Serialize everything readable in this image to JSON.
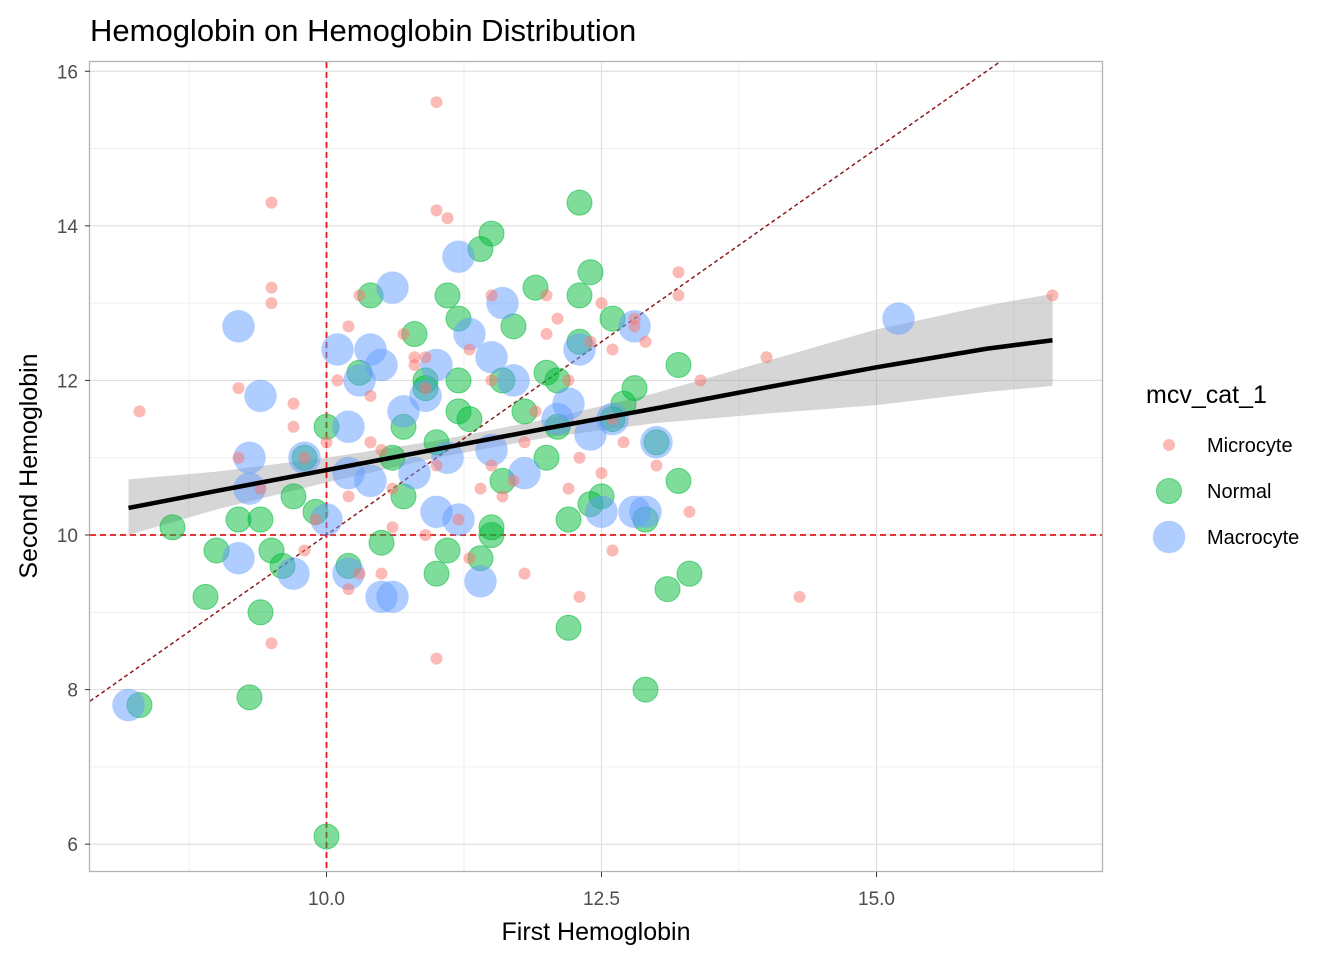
{
  "chart_data": {
    "type": "scatter",
    "title": "Hemoglobin on Hemoglobin Distribution",
    "xlabel": "First Hemoglobin",
    "ylabel": "Second Hemoglobin",
    "xlim": [
      7.85,
      17.05
    ],
    "ylim": [
      5.64,
      16.12
    ],
    "x_ticks": [
      10.0,
      12.5,
      15.0
    ],
    "x_tick_labels": [
      "10.0",
      "12.5",
      "15.0"
    ],
    "y_ticks": [
      6,
      8,
      10,
      12,
      14,
      16
    ],
    "y_tick_labels": [
      "6",
      "8",
      "10",
      "12",
      "14",
      "16"
    ],
    "x_minor_gridlines": [
      8.75,
      11.25,
      13.75,
      16.25
    ],
    "y_minor_gridlines": [
      7,
      9,
      11,
      13,
      15
    ],
    "grid": true,
    "vline_x": 10,
    "hline_y": 10,
    "identity_line": {
      "slope": 1,
      "intercept": 0,
      "color": "#8b1a1a"
    },
    "reference_line_color": "#e41a1c",
    "trend_line": {
      "x": [
        8.2,
        9.0,
        10.0,
        11.0,
        12.0,
        13.0,
        14.0,
        15.0,
        16.0,
        16.6
      ],
      "y": [
        10.35,
        10.57,
        10.84,
        11.11,
        11.38,
        11.64,
        11.91,
        12.17,
        12.41,
        12.52
      ],
      "band_lower": [
        10.0,
        10.33,
        10.68,
        11.0,
        11.26,
        11.45,
        11.57,
        11.68,
        11.85,
        11.93
      ],
      "band_upper": [
        10.72,
        10.82,
        11.0,
        11.22,
        11.5,
        11.84,
        12.25,
        12.66,
        12.97,
        13.12
      ]
    },
    "legend": {
      "title": "mcv_cat_1",
      "position": "right",
      "entries": [
        {
          "label": "Microcyte",
          "color": "#F8766D"
        },
        {
          "label": "Normal",
          "color": "#00BA38"
        },
        {
          "label": "Macrocyte",
          "color": "#619CFF"
        }
      ]
    },
    "series": [
      {
        "name": "Microcyte",
        "color": "#F8766D",
        "x": [
          8.3,
          9.5,
          9.5,
          9.5,
          9.2,
          9.2,
          9.5,
          9.4,
          9.7,
          9.7,
          9.8,
          9.9,
          10.0,
          10.2,
          10.2,
          10.3,
          10.3,
          10.4,
          10.4,
          10.5,
          10.5,
          10.6,
          10.7,
          10.8,
          10.9,
          10.9,
          11.0,
          11.0,
          11.0,
          11.1,
          11.3,
          11.4,
          11.5,
          11.5,
          11.5,
          11.6,
          11.7,
          11.8,
          11.9,
          12.0,
          12.0,
          12.1,
          12.2,
          12.3,
          12.4,
          12.5,
          12.6,
          12.6,
          12.7,
          12.8,
          12.9,
          13.0,
          13.2,
          13.2,
          13.3,
          13.4,
          14.0,
          14.3,
          16.6,
          12.5,
          12.8,
          12.3,
          11.8,
          11.2,
          10.9,
          10.6,
          10.1,
          9.8,
          10.2,
          11.0,
          12.2,
          11.3,
          10.8,
          12.6
        ],
        "y": [
          11.6,
          14.3,
          13.2,
          13.0,
          11.9,
          11.0,
          8.6,
          10.6,
          11.7,
          11.4,
          9.8,
          10.2,
          11.2,
          12.7,
          9.3,
          13.1,
          9.5,
          11.8,
          11.2,
          9.5,
          11.1,
          10.6,
          12.6,
          12.3,
          12.3,
          11.9,
          15.6,
          14.2,
          8.4,
          14.1,
          9.7,
          10.6,
          13.1,
          12.0,
          10.9,
          10.5,
          10.7,
          9.5,
          11.6,
          13.1,
          12.6,
          12.8,
          10.6,
          9.2,
          12.5,
          10.8,
          11.5,
          12.4,
          11.2,
          12.8,
          12.5,
          10.9,
          13.4,
          13.1,
          10.3,
          12.0,
          12.3,
          9.2,
          13.1,
          13.0,
          12.7,
          11.0,
          11.2,
          10.2,
          10.0,
          10.1,
          12.0,
          11.0,
          10.5,
          10.9,
          12.0,
          12.4,
          12.2,
          9.8
        ]
      },
      {
        "name": "Normal",
        "color": "#00BA38",
        "x": [
          8.3,
          8.6,
          8.9,
          9.0,
          9.2,
          9.3,
          9.4,
          9.4,
          9.5,
          9.6,
          9.7,
          9.8,
          9.9,
          10.0,
          10.0,
          10.2,
          10.3,
          10.4,
          10.5,
          10.6,
          10.7,
          10.8,
          10.9,
          11.0,
          11.0,
          11.1,
          11.1,
          11.2,
          11.2,
          11.3,
          11.4,
          11.4,
          11.5,
          11.5,
          11.6,
          11.7,
          11.8,
          11.9,
          12.0,
          12.0,
          12.1,
          12.2,
          12.2,
          12.3,
          12.3,
          12.4,
          12.4,
          12.5,
          12.6,
          12.7,
          12.8,
          12.9,
          13.0,
          13.1,
          13.2,
          13.2,
          13.3,
          12.3,
          11.5,
          10.9,
          11.2,
          12.1,
          12.6,
          11.6,
          10.7,
          12.9
        ],
        "y": [
          7.8,
          10.1,
          9.2,
          9.8,
          10.2,
          7.9,
          9.0,
          10.2,
          9.8,
          9.6,
          10.5,
          11.0,
          10.3,
          11.4,
          6.1,
          9.6,
          12.1,
          13.1,
          9.9,
          11.0,
          11.4,
          12.6,
          11.9,
          9.5,
          11.2,
          13.1,
          9.8,
          12.8,
          12.0,
          11.5,
          13.7,
          9.7,
          13.9,
          10.1,
          12.0,
          12.7,
          11.6,
          13.2,
          11.0,
          12.1,
          11.4,
          8.8,
          10.2,
          14.3,
          12.5,
          13.4,
          10.4,
          10.5,
          12.8,
          11.7,
          11.9,
          10.2,
          11.2,
          9.3,
          12.2,
          10.7,
          9.5,
          13.1,
          10.0,
          12.0,
          11.6,
          12.0,
          11.5,
          10.7,
          10.5,
          8.0
        ]
      },
      {
        "name": "Macrocyte",
        "color": "#619CFF",
        "x": [
          8.2,
          9.2,
          9.2,
          9.3,
          9.3,
          9.4,
          9.8,
          10.0,
          10.1,
          10.2,
          10.2,
          10.3,
          10.4,
          10.5,
          10.5,
          10.6,
          10.6,
          10.7,
          10.8,
          10.9,
          11.0,
          11.0,
          11.1,
          11.2,
          11.2,
          11.3,
          11.4,
          11.5,
          11.6,
          11.7,
          11.8,
          12.1,
          12.2,
          12.3,
          12.4,
          12.5,
          12.6,
          12.8,
          12.8,
          12.9,
          13.0,
          15.2,
          9.7,
          10.2,
          10.4,
          11.5
        ],
        "y": [
          7.8,
          12.7,
          9.7,
          11.0,
          10.6,
          11.8,
          11.0,
          10.2,
          12.4,
          11.4,
          10.8,
          12.0,
          12.4,
          12.2,
          9.2,
          13.2,
          9.2,
          11.6,
          10.8,
          11.8,
          12.2,
          10.3,
          11.0,
          13.6,
          10.2,
          12.6,
          9.4,
          12.3,
          13.0,
          12.0,
          10.8,
          11.5,
          11.7,
          12.4,
          11.3,
          10.3,
          11.5,
          12.7,
          10.3,
          10.3,
          11.2,
          12.8,
          9.5,
          9.5,
          10.7,
          11.1
        ]
      }
    ]
  }
}
